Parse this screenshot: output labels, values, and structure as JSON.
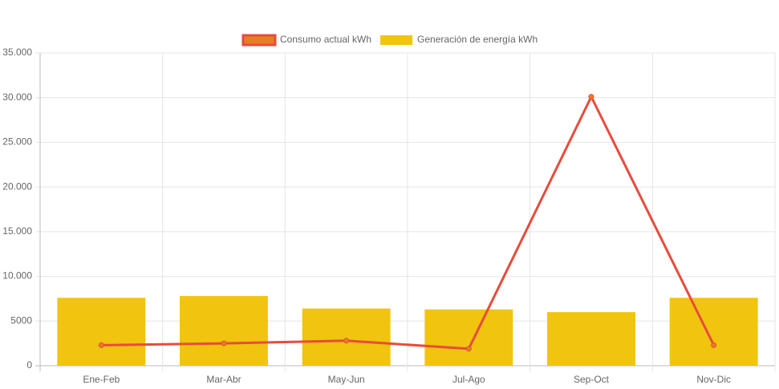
{
  "chart_data": {
    "type": "combo",
    "categories": [
      "Ene-Feb",
      "Mar-Abr",
      "May-Jun",
      "Jul-Ago",
      "Sep-Oct",
      "Nov-Dic"
    ],
    "series": [
      {
        "name": "Consumo actual kWh",
        "type": "line",
        "color": "#e74c3c",
        "point_color": "#e67e22",
        "values": [
          2300,
          2500,
          2800,
          1900,
          30100,
          2300
        ]
      },
      {
        "name": "Generación de energía kWh",
        "type": "bar",
        "color": "#f1c40f",
        "values": [
          7600,
          7800,
          6400,
          6300,
          6000,
          7600
        ]
      }
    ],
    "ylim": [
      0,
      35000
    ],
    "yticks": [
      0,
      5000,
      {
        "value": 10000,
        "label": "10.000"
      },
      {
        "value": 15000,
        "label": "15.000"
      },
      {
        "value": 20000,
        "label": "20.000"
      },
      {
        "value": 25000,
        "label": "25.000"
      },
      {
        "value": 30000,
        "label": "30.000"
      },
      {
        "value": 35000,
        "label": "35.000"
      }
    ],
    "grid": true,
    "legend": "top"
  }
}
